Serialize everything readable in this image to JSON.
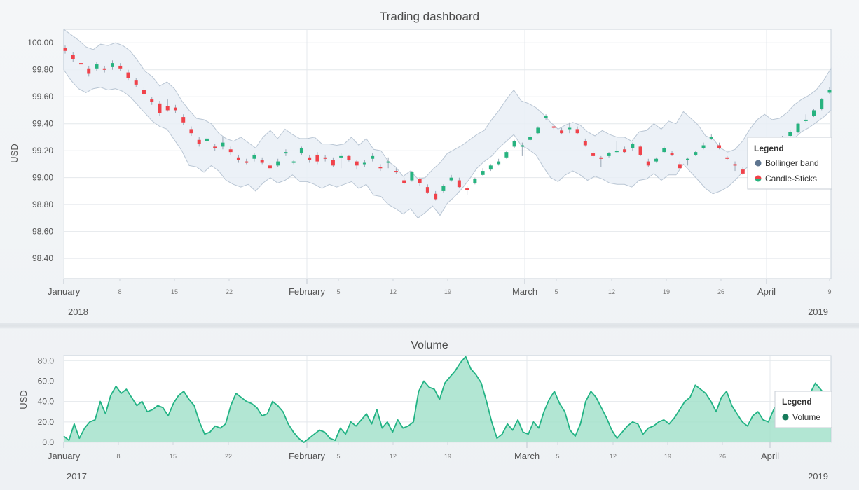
{
  "colors": {
    "up": "#27b37f",
    "down": "#f0424a",
    "wick": "#9aa7b5",
    "band_fill": "#e9eff6",
    "band_stroke": "#b9c6d4",
    "volume_line": "#22b384",
    "volume_fill": "#9fe0c8",
    "legend_bollinger": "#5e7590",
    "legend_volume": "#167a5a"
  },
  "chart_data": [
    {
      "type": "candlestick",
      "title": "Trading dashboard",
      "ylabel": "USD",
      "ylim": [
        98.25,
        100.1
      ],
      "yticks": [
        "100.00",
        "99.80",
        "99.60",
        "99.40",
        "99.20",
        "99.00",
        "98.80",
        "98.60",
        "98.40"
      ],
      "ytick_values": [
        100.0,
        99.8,
        99.6,
        99.4,
        99.2,
        99.0,
        98.8,
        98.6,
        98.4
      ],
      "grid": true,
      "x_major_labels": [
        "January",
        "February",
        "March",
        "April"
      ],
      "x_minor_labels": [
        "8",
        "15",
        "22",
        "5",
        "12",
        "19",
        "5",
        "12",
        "19",
        "26",
        "9"
      ],
      "x_start_label": "2018",
      "x_end_label": "2019",
      "legend": {
        "title": "Legend",
        "entries": [
          "Bollinger band",
          "Candle-Sticks"
        ],
        "placement": "right"
      },
      "bollinger_upper": [
        100.1,
        100.06,
        100.02,
        99.97,
        99.95,
        99.99,
        99.98,
        100.0,
        99.98,
        99.94,
        99.87,
        99.79,
        99.75,
        99.68,
        99.71,
        99.66,
        99.57,
        99.5,
        99.44,
        99.43,
        99.4,
        99.33,
        99.29,
        99.27,
        99.3,
        99.26,
        99.22,
        99.3,
        99.35,
        99.29,
        99.36,
        99.32,
        99.29,
        99.29,
        99.3,
        99.25,
        99.25,
        99.24,
        99.25,
        99.3,
        99.24,
        99.29,
        99.21,
        99.2,
        99.12,
        99.08,
        99.01,
        99.05,
        98.99,
        99.0,
        99.06,
        99.11,
        99.18,
        99.21,
        99.24,
        99.28,
        99.32,
        99.35,
        99.43,
        99.5,
        99.58,
        99.65,
        99.57,
        99.55,
        99.52,
        99.47,
        99.41,
        99.36,
        99.39,
        99.41,
        99.39,
        99.34,
        99.31,
        99.35,
        99.32,
        99.3,
        99.3,
        99.27,
        99.34,
        99.35,
        99.4,
        99.36,
        99.42,
        99.4,
        99.49,
        99.44,
        99.39,
        99.31,
        99.29,
        99.22,
        99.19,
        99.21,
        99.27,
        99.36,
        99.43,
        99.47,
        99.43,
        99.44,
        99.48,
        99.54,
        99.58,
        99.61,
        99.65,
        99.72,
        99.81
      ],
      "bollinger_lower": [
        99.8,
        99.72,
        99.66,
        99.63,
        99.66,
        99.67,
        99.65,
        99.66,
        99.64,
        99.6,
        99.54,
        99.48,
        99.42,
        99.38,
        99.36,
        99.28,
        99.2,
        99.09,
        99.08,
        99.04,
        99.09,
        99.05,
        98.98,
        98.95,
        98.93,
        98.95,
        98.9,
        98.96,
        99.0,
        98.96,
        98.98,
        99.02,
        98.97,
        98.97,
        98.95,
        98.92,
        98.95,
        98.93,
        98.95,
        98.97,
        98.92,
        98.95,
        98.87,
        98.86,
        98.8,
        98.77,
        98.73,
        98.77,
        98.7,
        98.74,
        98.79,
        98.72,
        98.81,
        98.86,
        98.92,
        98.99,
        99.07,
        99.12,
        99.16,
        99.22,
        99.27,
        99.32,
        99.24,
        99.21,
        99.17,
        99.08,
        99.0,
        98.97,
        99.02,
        99.05,
        99.02,
        98.98,
        99.01,
        98.99,
        98.96,
        98.95,
        98.95,
        98.93,
        98.98,
        98.99,
        99.03,
        98.98,
        99.02,
        99.02,
        99.1,
        99.04,
        98.98,
        98.92,
        98.88,
        98.9,
        98.93,
        98.98,
        99.04,
        99.1,
        99.17,
        99.2,
        99.17,
        99.19,
        99.24,
        99.29,
        99.34,
        99.37,
        99.41,
        99.45,
        99.5
      ],
      "candles": [
        {
          "o": 99.96,
          "c": 99.94,
          "h": 99.98,
          "l": 99.92
        },
        {
          "o": 99.91,
          "c": 99.88,
          "h": 99.93,
          "l": 99.86
        },
        {
          "o": 99.85,
          "c": 99.84,
          "h": 99.87,
          "l": 99.82
        },
        {
          "o": 99.81,
          "c": 99.77,
          "h": 99.83,
          "l": 99.75
        },
        {
          "o": 99.81,
          "c": 99.84,
          "h": 99.86,
          "l": 99.79
        },
        {
          "o": 99.81,
          "c": 99.8,
          "h": 99.83,
          "l": 99.78
        },
        {
          "o": 99.82,
          "c": 99.85,
          "h": 99.87,
          "l": 99.8
        },
        {
          "o": 99.83,
          "c": 99.81,
          "h": 99.85,
          "l": 99.79
        },
        {
          "o": 99.78,
          "c": 99.74,
          "h": 99.8,
          "l": 99.72
        },
        {
          "o": 99.72,
          "c": 99.69,
          "h": 99.74,
          "l": 99.67
        },
        {
          "o": 99.65,
          "c": 99.62,
          "h": 99.67,
          "l": 99.6
        },
        {
          "o": 99.58,
          "c": 99.56,
          "h": 99.6,
          "l": 99.54
        },
        {
          "o": 99.55,
          "c": 99.48,
          "h": 99.57,
          "l": 99.46
        },
        {
          "o": 99.53,
          "c": 99.5,
          "h": 99.58,
          "l": 99.49
        },
        {
          "o": 99.52,
          "c": 99.5,
          "h": 99.54,
          "l": 99.48
        },
        {
          "o": 99.45,
          "c": 99.41,
          "h": 99.47,
          "l": 99.39
        },
        {
          "o": 99.36,
          "c": 99.33,
          "h": 99.38,
          "l": 99.31
        },
        {
          "o": 99.28,
          "c": 99.25,
          "h": 99.3,
          "l": 99.23
        },
        {
          "o": 99.27,
          "c": 99.29,
          "h": 99.3,
          "l": 99.25
        },
        {
          "o": 99.23,
          "c": 99.22,
          "h": 99.25,
          "l": 99.2
        },
        {
          "o": 99.23,
          "c": 99.26,
          "h": 99.3,
          "l": 99.21
        },
        {
          "o": 99.21,
          "c": 99.19,
          "h": 99.23,
          "l": 99.17
        },
        {
          "o": 99.15,
          "c": 99.13,
          "h": 99.17,
          "l": 99.11
        },
        {
          "o": 99.12,
          "c": 99.11,
          "h": 99.14,
          "l": 99.1
        },
        {
          "o": 99.14,
          "c": 99.17,
          "h": 99.18,
          "l": 99.12
        },
        {
          "o": 99.13,
          "c": 99.11,
          "h": 99.15,
          "l": 99.1
        },
        {
          "o": 99.09,
          "c": 99.07,
          "h": 99.11,
          "l": 99.06
        },
        {
          "o": 99.09,
          "c": 99.12,
          "h": 99.14,
          "l": 99.08
        },
        {
          "o": 99.18,
          "c": 99.19,
          "h": 99.21,
          "l": 99.16
        },
        {
          "o": 99.11,
          "c": 99.12,
          "h": 99.13,
          "l": 99.1
        },
        {
          "o": 99.18,
          "c": 99.22,
          "h": 99.23,
          "l": 99.17
        },
        {
          "o": 99.15,
          "c": 99.13,
          "h": 99.17,
          "l": 99.11
        },
        {
          "o": 99.17,
          "c": 99.12,
          "h": 99.19,
          "l": 99.1
        },
        {
          "o": 99.15,
          "c": 99.14,
          "h": 99.17,
          "l": 99.12
        },
        {
          "o": 99.13,
          "c": 99.09,
          "h": 99.15,
          "l": 99.08
        },
        {
          "o": 99.15,
          "c": 99.16,
          "h": 99.18,
          "l": 99.07
        },
        {
          "o": 99.16,
          "c": 99.13,
          "h": 99.17,
          "l": 99.12
        },
        {
          "o": 99.12,
          "c": 99.09,
          "h": 99.13,
          "l": 99.06
        },
        {
          "o": 99.1,
          "c": 99.11,
          "h": 99.13,
          "l": 99.08
        },
        {
          "o": 99.14,
          "c": 99.16,
          "h": 99.18,
          "l": 99.12
        },
        {
          "o": 99.08,
          "c": 99.07,
          "h": 99.1,
          "l": 99.05
        },
        {
          "o": 99.11,
          "c": 99.12,
          "h": 99.15,
          "l": 99.07
        },
        {
          "o": 99.05,
          "c": 99.04,
          "h": 99.07,
          "l": 99.03
        },
        {
          "o": 98.98,
          "c": 98.96,
          "h": 99.0,
          "l": 98.95
        },
        {
          "o": 98.98,
          "c": 99.04,
          "h": 99.05,
          "l": 98.97
        },
        {
          "o": 98.99,
          "c": 98.96,
          "h": 99.0,
          "l": 98.94
        },
        {
          "o": 98.93,
          "c": 98.89,
          "h": 98.95,
          "l": 98.88
        },
        {
          "o": 98.88,
          "c": 98.84,
          "h": 98.9,
          "l": 98.83
        },
        {
          "o": 98.9,
          "c": 98.94,
          "h": 98.95,
          "l": 98.89
        },
        {
          "o": 98.98,
          "c": 99.0,
          "h": 99.02,
          "l": 98.97
        },
        {
          "o": 98.98,
          "c": 98.93,
          "h": 99.0,
          "l": 98.92
        },
        {
          "o": 98.92,
          "c": 98.91,
          "h": 98.94,
          "l": 98.87
        },
        {
          "o": 98.96,
          "c": 98.99,
          "h": 99.0,
          "l": 98.95
        },
        {
          "o": 99.02,
          "c": 99.05,
          "h": 99.07,
          "l": 99.01
        },
        {
          "o": 99.06,
          "c": 99.09,
          "h": 99.1,
          "l": 99.05
        },
        {
          "o": 99.1,
          "c": 99.12,
          "h": 99.14,
          "l": 99.09
        },
        {
          "o": 99.15,
          "c": 99.19,
          "h": 99.2,
          "l": 99.14
        },
        {
          "o": 99.23,
          "c": 99.27,
          "h": 99.28,
          "l": 99.22
        },
        {
          "o": 99.23,
          "c": 99.24,
          "h": 99.26,
          "l": 99.16
        },
        {
          "o": 99.28,
          "c": 99.3,
          "h": 99.32,
          "l": 99.27
        },
        {
          "o": 99.33,
          "c": 99.37,
          "h": 99.38,
          "l": 99.32
        },
        {
          "o": 99.44,
          "c": 99.46,
          "h": 99.47,
          "l": 99.43
        },
        {
          "o": 99.38,
          "c": 99.37,
          "h": 99.4,
          "l": 99.36
        },
        {
          "o": 99.35,
          "c": 99.33,
          "h": 99.37,
          "l": 99.32
        },
        {
          "o": 99.36,
          "c": 99.37,
          "h": 99.41,
          "l": 99.33
        },
        {
          "o": 99.36,
          "c": 99.33,
          "h": 99.38,
          "l": 99.32
        },
        {
          "o": 99.27,
          "c": 99.24,
          "h": 99.29,
          "l": 99.23
        },
        {
          "o": 99.18,
          "c": 99.16,
          "h": 99.2,
          "l": 99.15
        },
        {
          "o": 99.15,
          "c": 99.14,
          "h": 99.16,
          "l": 99.08
        },
        {
          "o": 99.16,
          "c": 99.18,
          "h": 99.19,
          "l": 99.15
        },
        {
          "o": 99.19,
          "c": 99.2,
          "h": 99.27,
          "l": 99.18
        },
        {
          "o": 99.21,
          "c": 99.19,
          "h": 99.23,
          "l": 99.18
        },
        {
          "o": 99.22,
          "c": 99.25,
          "h": 99.26,
          "l": 99.2
        },
        {
          "o": 99.23,
          "c": 99.17,
          "h": 99.24,
          "l": 99.16
        },
        {
          "o": 99.12,
          "c": 99.09,
          "h": 99.14,
          "l": 99.08
        },
        {
          "o": 99.12,
          "c": 99.14,
          "h": 99.15,
          "l": 99.11
        },
        {
          "o": 99.19,
          "c": 99.22,
          "h": 99.23,
          "l": 99.18
        },
        {
          "o": 99.18,
          "c": 99.17,
          "h": 99.2,
          "l": 99.16
        },
        {
          "o": 99.1,
          "c": 99.07,
          "h": 99.12,
          "l": 99.06
        },
        {
          "o": 99.13,
          "c": 99.14,
          "h": 99.15,
          "l": 99.09
        },
        {
          "o": 99.17,
          "c": 99.19,
          "h": 99.2,
          "l": 99.16
        },
        {
          "o": 99.22,
          "c": 99.24,
          "h": 99.26,
          "l": 99.21
        },
        {
          "o": 99.29,
          "c": 99.3,
          "h": 99.32,
          "l": 99.28
        },
        {
          "o": 99.24,
          "c": 99.22,
          "h": 99.26,
          "l": 99.21
        },
        {
          "o": 99.15,
          "c": 99.14,
          "h": 99.16,
          "l": 99.13
        },
        {
          "o": 99.1,
          "c": 99.09,
          "h": 99.12,
          "l": 99.05
        },
        {
          "o": 99.06,
          "c": 99.03,
          "h": 99.08,
          "l": 99.02
        },
        {
          "o": 99.05,
          "c": 99.06,
          "h": 99.1,
          "l": 99.01
        },
        {
          "o": 99.12,
          "c": 99.14,
          "h": 99.15,
          "l": 99.11
        },
        {
          "o": 99.19,
          "c": 99.21,
          "h": 99.22,
          "l": 99.18
        },
        {
          "o": 99.24,
          "c": 99.25,
          "h": 99.27,
          "l": 99.23
        },
        {
          "o": 99.28,
          "c": 99.3,
          "h": 99.31,
          "l": 99.27
        },
        {
          "o": 99.31,
          "c": 99.34,
          "h": 99.35,
          "l": 99.3
        },
        {
          "o": 99.34,
          "c": 99.4,
          "h": 99.41,
          "l": 99.33
        },
        {
          "o": 99.42,
          "c": 99.43,
          "h": 99.47,
          "l": 99.41
        },
        {
          "o": 99.46,
          "c": 99.5,
          "h": 99.51,
          "l": 99.45
        },
        {
          "o": 99.51,
          "c": 99.58,
          "h": 99.59,
          "l": 99.5
        },
        {
          "o": 99.63,
          "c": 99.65,
          "h": 99.67,
          "l": 99.62
        }
      ]
    },
    {
      "type": "area",
      "title": "Volume",
      "ylabel": "USD",
      "ylim": [
        0,
        85
      ],
      "yticks": [
        "80.0",
        "60.0",
        "40.0",
        "20.0",
        "0.0"
      ],
      "ytick_values": [
        80,
        60,
        40,
        20,
        0
      ],
      "grid": true,
      "x_major_labels": [
        "January",
        "February",
        "March",
        "April"
      ],
      "x_minor_labels": [
        "8",
        "15",
        "22",
        "5",
        "12",
        "19",
        "5",
        "12",
        "19",
        "26"
      ],
      "x_start_label": "2017",
      "x_end_label": "2019",
      "legend": {
        "title": "Legend",
        "entries": [
          "Volume"
        ],
        "placement": "right"
      },
      "series": [
        {
          "name": "Volume",
          "values": [
            6,
            2,
            18,
            4,
            14,
            20,
            22,
            40,
            28,
            46,
            55,
            48,
            52,
            44,
            36,
            40,
            30,
            32,
            36,
            34,
            26,
            38,
            46,
            50,
            42,
            36,
            20,
            8,
            10,
            16,
            14,
            18,
            36,
            48,
            44,
            40,
            38,
            34,
            26,
            28,
            40,
            36,
            30,
            18,
            10,
            4,
            0,
            4,
            8,
            12,
            10,
            4,
            2,
            14,
            8,
            20,
            16,
            22,
            28,
            18,
            32,
            14,
            20,
            10,
            22,
            14,
            16,
            20,
            50,
            60,
            54,
            52,
            42,
            58,
            64,
            70,
            78,
            84,
            72,
            66,
            58,
            40,
            20,
            4,
            8,
            18,
            12,
            22,
            10,
            8,
            20,
            14,
            30,
            42,
            50,
            38,
            30,
            12,
            6,
            18,
            40,
            50,
            44,
            34,
            24,
            12,
            4,
            10,
            16,
            20,
            18,
            8,
            14,
            16,
            20,
            22,
            18,
            24,
            32,
            40,
            44,
            56,
            52,
            48,
            40,
            30,
            44,
            50,
            36,
            28,
            20,
            16,
            26,
            30,
            22,
            20,
            32,
            40,
            28,
            24,
            18,
            30,
            26,
            48,
            58,
            52,
            46,
            40
          ]
        }
      ]
    }
  ]
}
